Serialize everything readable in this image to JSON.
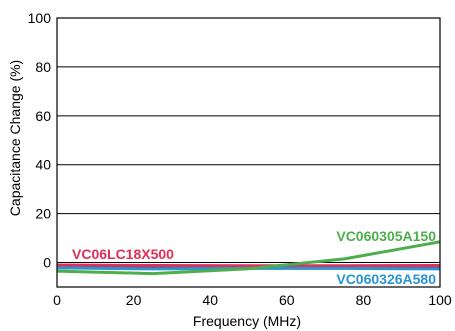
{
  "chart_data": {
    "type": "line",
    "xlabel": "Frequency (MHz)",
    "ylabel": "Capacitance Change (%)",
    "xlim": [
      0,
      100
    ],
    "ylim": [
      -10,
      100
    ],
    "xticks": [
      0,
      20,
      40,
      60,
      80,
      100
    ],
    "yticks": [
      0,
      20,
      40,
      60,
      80,
      100
    ],
    "grid": "horizontal",
    "series": [
      {
        "name": "VC060305A150",
        "color": "#4cae4c",
        "x": [
          0,
          25,
          50,
          75,
          100
        ],
        "y": [
          -3.5,
          -4.5,
          -2.5,
          1.5,
          8.5
        ]
      },
      {
        "name": "VC06LC18X500",
        "color": "#e0305a",
        "x": [
          0,
          25,
          50,
          75,
          100
        ],
        "y": [
          -1,
          -1.2,
          -1.3,
          -1.3,
          -1.2
        ]
      },
      {
        "name": "VC060326A580",
        "color": "#2b95cf",
        "x": [
          0,
          25,
          50,
          75,
          100
        ],
        "y": [
          -2.2,
          -2.6,
          -2.4,
          -2.4,
          -2.6
        ]
      },
      {
        "name": "",
        "color": "#3d3d9a",
        "x": [
          0,
          25,
          50,
          75,
          100
        ],
        "y": [
          -1.8,
          -1.9,
          -1.9,
          -1.9,
          -1.9
        ]
      }
    ]
  }
}
